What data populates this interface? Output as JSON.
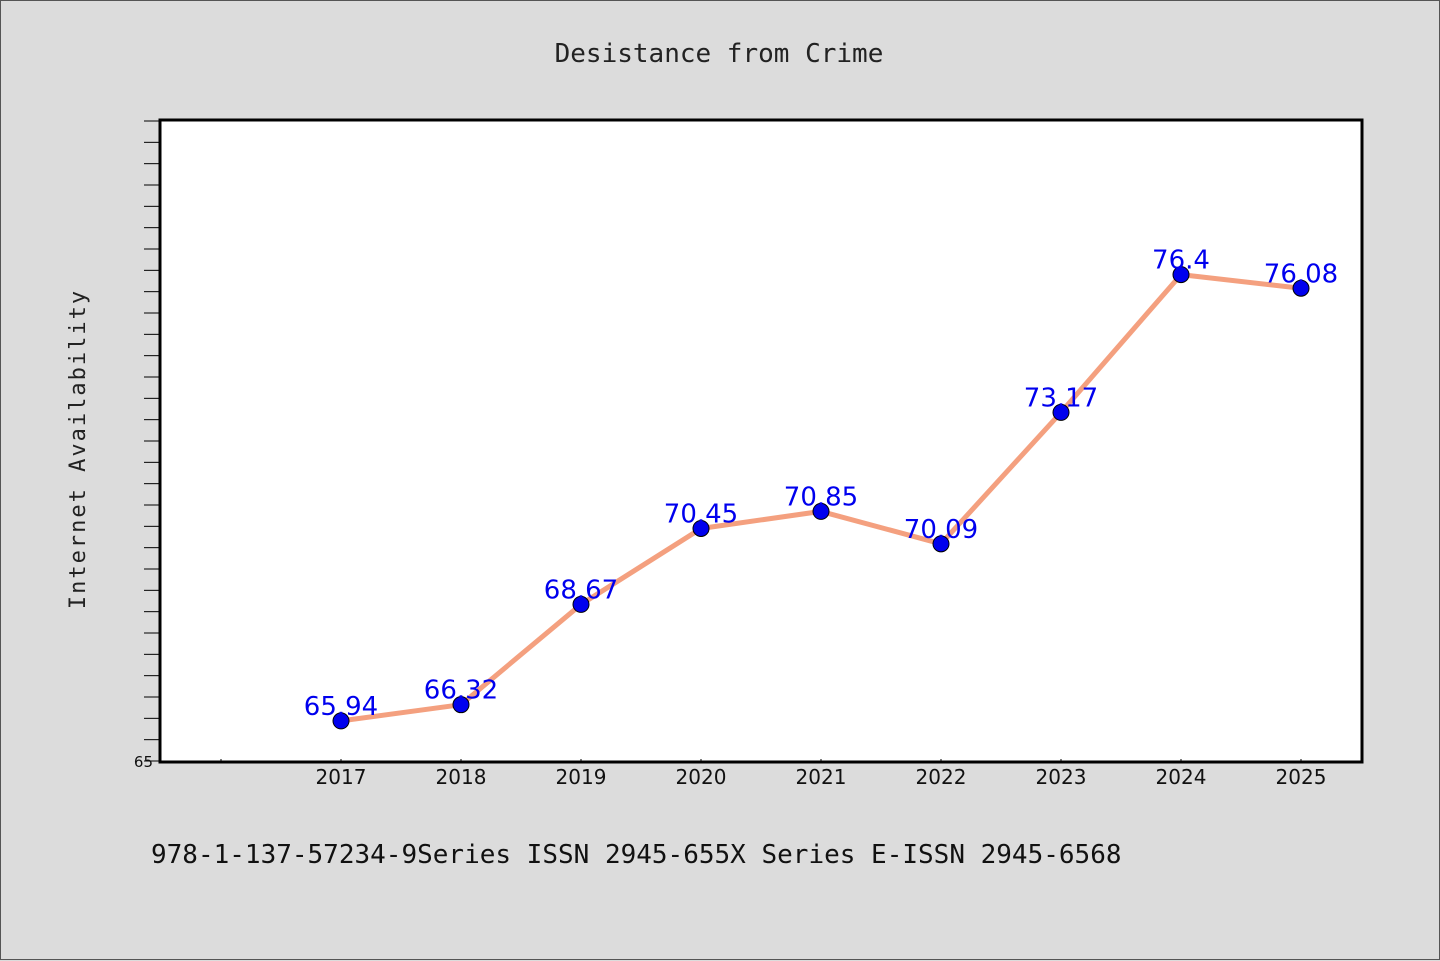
{
  "chart_data": {
    "type": "line",
    "title": "Desistance from Crime",
    "xlabel": "",
    "ylabel": "Internet Availability",
    "categories": [
      "2017",
      "2018",
      "2019",
      "2020",
      "2021",
      "2022",
      "2023",
      "2024",
      "2025"
    ],
    "series": [
      {
        "values": [
          65.94,
          66.32,
          68.67,
          70.45,
          70.85,
          70.09,
          73.17,
          76.4,
          76.08
        ],
        "labels": [
          "65.94",
          "66.32",
          "68.67",
          "70.45",
          "70.85",
          "70.09",
          "73.17",
          "76.4",
          "76.08"
        ],
        "line_color": "#f4a07f",
        "marker_color": "#0000ee"
      }
    ],
    "ylim": [
      65,
      80
    ],
    "y_tick_labels": [
      "65"
    ],
    "grid": false,
    "legend": "none"
  },
  "footer": {
    "text": "978-1-137-57234-9Series ISSN 2945-655X Series E-ISSN 2945-6568"
  }
}
